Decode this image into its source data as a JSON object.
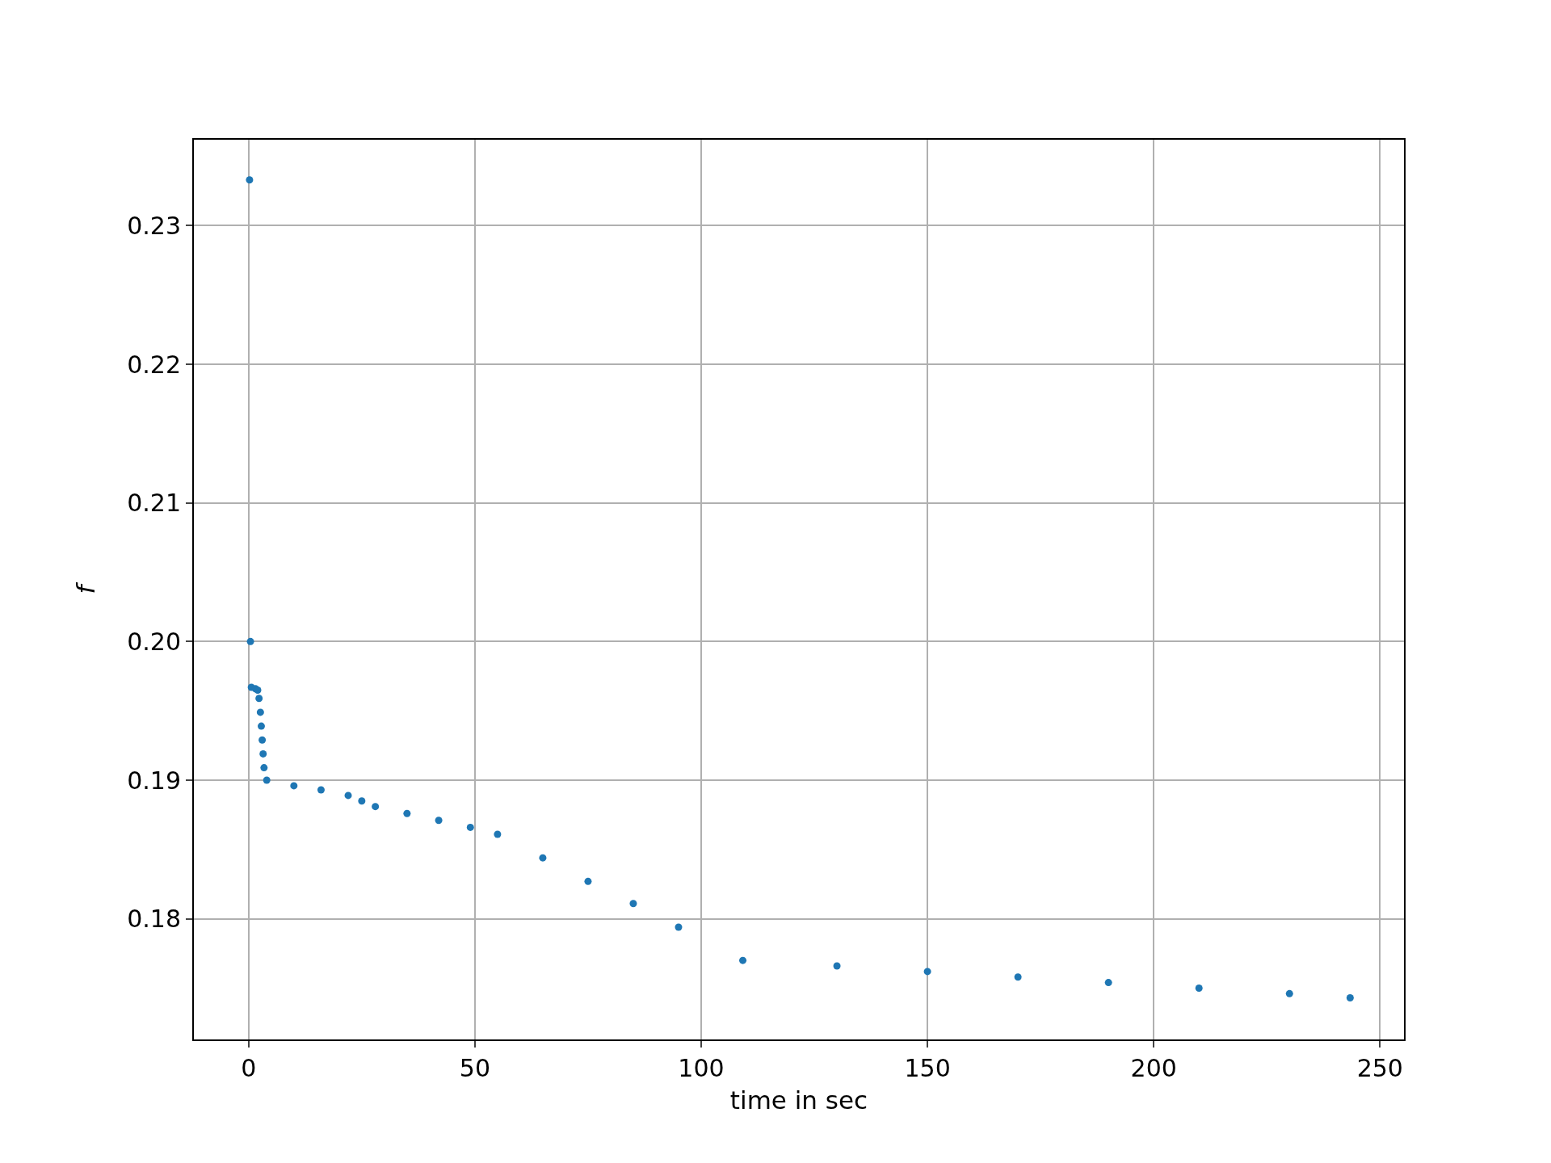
{
  "chart_data": {
    "type": "scatter",
    "xlabel": "time in sec",
    "ylabel": "f",
    "x": [
      0.2,
      0.4,
      0.6,
      1.5,
      2,
      2.3,
      2.6,
      2.8,
      3,
      3.2,
      3.4,
      4,
      10,
      16,
      22,
      25,
      28,
      35,
      42,
      49,
      55,
      65,
      75,
      85,
      95,
      109.2,
      130,
      150,
      170,
      190,
      210,
      230,
      243.4
    ],
    "series": [
      {
        "color": "#1f77b4",
        "values": [
          0.2333,
          0.2,
          0.1967,
          0.1966,
          0.1965,
          0.1959,
          0.1949,
          0.1939,
          0.1929,
          0.1919,
          0.1909,
          0.19,
          0.1896,
          0.1893,
          0.1889,
          0.1885,
          0.1881,
          0.1876,
          0.1871,
          0.1866,
          0.1861,
          0.1844,
          0.1827,
          0.1811,
          0.1794,
          0.177,
          0.1766,
          0.1762,
          0.1758,
          0.1754,
          0.175,
          0.1746,
          0.1743
        ]
      }
    ],
    "xlim": [
      -12.1,
      255.3
    ],
    "ylim": [
      0.1713,
      0.2362
    ],
    "xticks": [
      0,
      50,
      100,
      150,
      200,
      250
    ],
    "yticks": [
      0.18,
      0.19,
      {
        "value": 0.2,
        "label": "0.20"
      },
      0.21,
      0.22,
      0.23
    ],
    "grid": true,
    "marker": "circle"
  }
}
